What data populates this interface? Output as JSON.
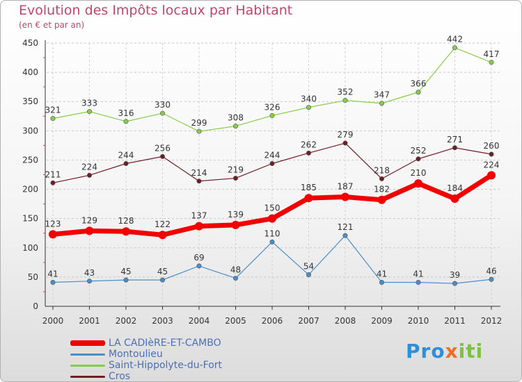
{
  "chart_data": {
    "type": "line",
    "title": "Evolution des Impôts locaux par Habitant",
    "subtitle": "(en € et par an)",
    "categories": [
      "2000",
      "2001",
      "2002",
      "2003",
      "2004",
      "2005",
      "2006",
      "2007",
      "2008",
      "2009",
      "2010",
      "2011",
      "2012"
    ],
    "ylim": [
      0,
      450
    ],
    "yticks": [
      0,
      50,
      100,
      150,
      200,
      250,
      300,
      350,
      400,
      450
    ],
    "ytick_labels": [
      "0",
      "50",
      "100",
      "150",
      "200",
      "250",
      "300",
      "350",
      "400",
      "450"
    ],
    "grid": true,
    "legend_position": "bottom-left",
    "series": [
      {
        "name": "Saint-Hippolyte-du-Fort",
        "color": "#86cc4a",
        "values": [
          321,
          333,
          316,
          330,
          299,
          308,
          326,
          340,
          352,
          347,
          366,
          442,
          417
        ],
        "labels": [
          "321",
          "333",
          "316",
          "330",
          "299",
          "308",
          "326",
          "340",
          "352",
          "347",
          "366",
          "442",
          "417"
        ]
      },
      {
        "name": "Cros",
        "color": "#6e1f24",
        "values": [
          211,
          224,
          244,
          256,
          214,
          219,
          244,
          262,
          279,
          218,
          252,
          271,
          260
        ],
        "labels": [
          "211",
          "224",
          "244",
          "256",
          "214",
          "219",
          "244",
          "262",
          "279",
          "218",
          "252",
          "271",
          "260"
        ]
      },
      {
        "name": "LA CADIèRE-ET-CAMBO",
        "color": "#f20000",
        "values": [
          123,
          129,
          128,
          122,
          137,
          139,
          150,
          185,
          187,
          182,
          210,
          184,
          224
        ],
        "labels": [
          "123",
          "129",
          "128",
          "122",
          "137",
          "139",
          "150",
          "185",
          "187",
          "182",
          "210",
          "184",
          "224"
        ]
      },
      {
        "name": "Montoulieu",
        "color": "#4a8ec8",
        "values": [
          41,
          43,
          45,
          45,
          69,
          48,
          110,
          54,
          121,
          41,
          41,
          39,
          46
        ],
        "labels": [
          "41",
          "43",
          "45",
          "45",
          "69",
          "48",
          "110",
          "54",
          "121",
          "41",
          "41",
          "39",
          "46"
        ]
      }
    ],
    "legend_order": [
      "LA CADIèRE-ET-CAMBO",
      "Montoulieu",
      "Saint-Hippolyte-du-Fort",
      "Cros"
    ]
  },
  "logo": {
    "p1": "Pro",
    "x": "x",
    "p2": "iti"
  }
}
